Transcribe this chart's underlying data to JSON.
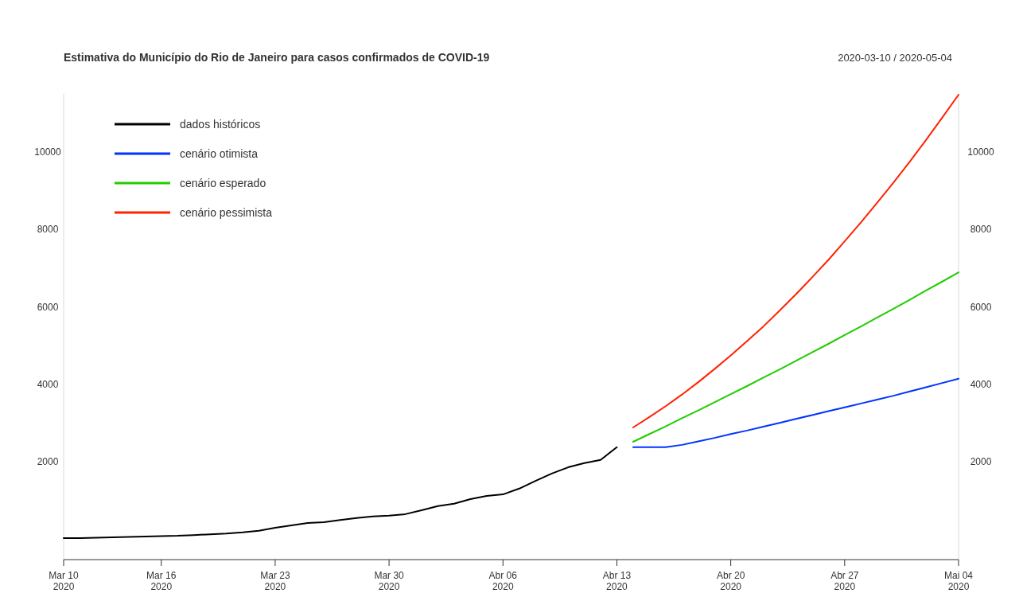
{
  "chart_data": {
    "type": "line",
    "title": "Estimativa do Município do Rio de Janeiro para casos confirmados de COVID-19",
    "subtitle": "2020-03-10 / 2020-05-04",
    "xlim": [
      "2020-03-10",
      "2020-05-04"
    ],
    "xticks": [
      {
        "value": "2020-03-10",
        "label": "Mar 10\n2020"
      },
      {
        "value": "2020-03-16",
        "label": "Mar 16\n2020"
      },
      {
        "value": "2020-03-23",
        "label": "Mar 23\n2020"
      },
      {
        "value": "2020-03-30",
        "label": "Mar 30\n2020"
      },
      {
        "value": "2020-04-06",
        "label": "Abr 06\n2020"
      },
      {
        "value": "2020-04-13",
        "label": "Abr 13\n2020"
      },
      {
        "value": "2020-04-20",
        "label": "Abr 20\n2020"
      },
      {
        "value": "2020-04-27",
        "label": "Abr 27\n2020"
      },
      {
        "value": "2020-05-04",
        "label": "Mai 04\n2020"
      }
    ],
    "ylim": [
      -535,
      11500
    ],
    "yticks": [
      2000,
      4000,
      6000,
      8000,
      10000
    ],
    "y2lim": [
      -535,
      11500
    ],
    "y2ticks": [
      2000,
      4000,
      6000,
      8000,
      10000
    ],
    "grid": false,
    "legend": "top left",
    "series": [
      {
        "name": "dados históricos",
        "color": "#000000",
        "x": [
          "2020-03-10",
          "2020-03-11",
          "2020-03-12",
          "2020-03-13",
          "2020-03-14",
          "2020-03-15",
          "2020-03-16",
          "2020-03-17",
          "2020-03-18",
          "2020-03-19",
          "2020-03-20",
          "2020-03-21",
          "2020-03-22",
          "2020-03-23",
          "2020-03-24",
          "2020-03-25",
          "2020-03-26",
          "2020-03-27",
          "2020-03-28",
          "2020-03-29",
          "2020-03-30",
          "2020-03-31",
          "2020-04-01",
          "2020-04-02",
          "2020-04-03",
          "2020-04-04",
          "2020-04-05",
          "2020-04-06",
          "2020-04-07",
          "2020-04-08",
          "2020-04-09",
          "2020-04-10",
          "2020-04-11",
          "2020-04-12",
          "2020-04-13"
        ],
        "values": [
          20,
          20,
          30,
          40,
          50,
          60,
          70,
          80,
          100,
          120,
          140,
          170,
          210,
          290,
          350,
          410,
          430,
          490,
          540,
          580,
          600,
          640,
          740,
          850,
          910,
          1030,
          1110,
          1150,
          1300,
          1500,
          1690,
          1850,
          1960,
          2040,
          2370
        ]
      },
      {
        "name": "cenário otimista",
        "color": "#0033ff",
        "x": [
          "2020-04-14",
          "2020-04-15",
          "2020-04-16",
          "2020-04-17",
          "2020-04-18",
          "2020-04-19",
          "2020-04-20",
          "2020-04-21",
          "2020-04-22",
          "2020-04-23",
          "2020-04-24",
          "2020-04-25",
          "2020-04-26",
          "2020-04-27",
          "2020-04-28",
          "2020-04-29",
          "2020-04-30",
          "2020-05-01",
          "2020-05-02",
          "2020-05-03",
          "2020-05-04"
        ],
        "values": [
          2370,
          2370,
          2370,
          2430,
          2520,
          2610,
          2710,
          2800,
          2900,
          3000,
          3100,
          3200,
          3300,
          3400,
          3500,
          3600,
          3700,
          3810,
          3920,
          4030,
          4140
        ]
      },
      {
        "name": "cenário esperado",
        "color": "#22cc00",
        "x": [
          "2020-04-14",
          "2020-04-15",
          "2020-04-16",
          "2020-04-17",
          "2020-04-18",
          "2020-04-19",
          "2020-04-20",
          "2020-04-21",
          "2020-04-22",
          "2020-04-23",
          "2020-04-24",
          "2020-04-25",
          "2020-04-26",
          "2020-04-27",
          "2020-04-28",
          "2020-04-29",
          "2020-04-30",
          "2020-05-01",
          "2020-05-02",
          "2020-05-03",
          "2020-05-04"
        ],
        "values": [
          2510,
          2710,
          2910,
          3120,
          3320,
          3530,
          3740,
          3950,
          4170,
          4380,
          4600,
          4820,
          5040,
          5270,
          5490,
          5720,
          5950,
          6180,
          6420,
          6650,
          6890
        ]
      },
      {
        "name": "cenário pessimista",
        "color": "#ff2200",
        "x": [
          "2020-04-14",
          "2020-04-15",
          "2020-04-16",
          "2020-04-17",
          "2020-04-18",
          "2020-04-19",
          "2020-04-20",
          "2020-04-21",
          "2020-04-22",
          "2020-04-23",
          "2020-04-24",
          "2020-04-25",
          "2020-04-26",
          "2020-04-27",
          "2020-04-28",
          "2020-04-29",
          "2020-04-30",
          "2020-05-01",
          "2020-05-02",
          "2020-05-03",
          "2020-05-04"
        ],
        "values": [
          2880,
          3150,
          3430,
          3730,
          4050,
          4390,
          4740,
          5110,
          5490,
          5900,
          6320,
          6760,
          7210,
          7690,
          8180,
          8690,
          9210,
          9750,
          10310,
          10890,
          11480
        ]
      }
    ]
  }
}
